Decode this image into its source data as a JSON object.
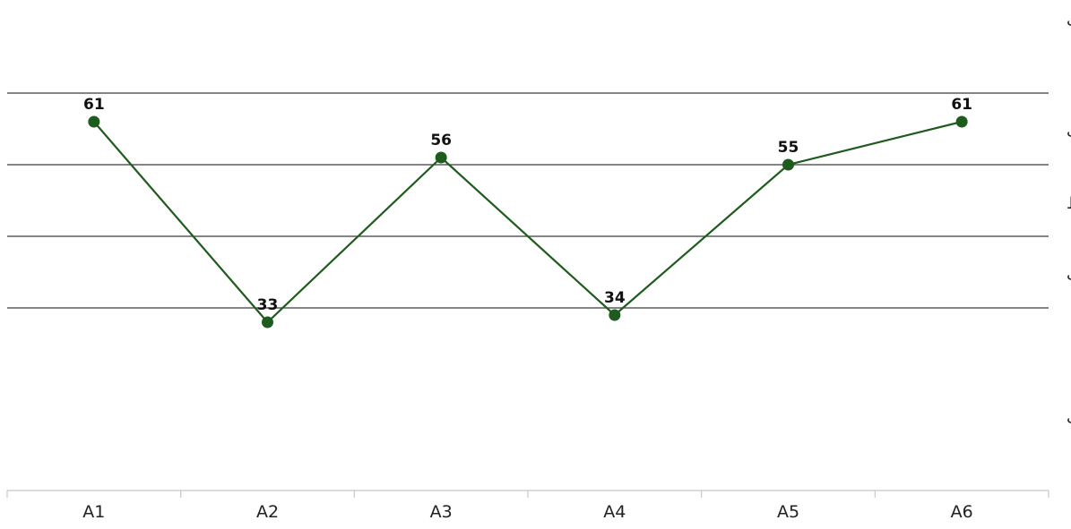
{
  "chart_data": {
    "type": "line",
    "title": "",
    "xlabel": "",
    "ylabel": "",
    "categories": [
      "A1",
      "A2",
      "A3",
      "A4",
      "A5",
      "A6"
    ],
    "series": [
      {
        "values": [
          61,
          33,
          56,
          34,
          55,
          61
        ],
        "color": "#1e5c1e"
      }
    ],
    "ylim": [
      10,
      75
    ],
    "reference_lines": [
      65,
      55,
      45,
      35
    ],
    "band_labels": [
      {
        "text": "خیلی مطلوب",
        "value": 75
      },
      {
        "text": "مطلوب",
        "value": 59.5
      },
      {
        "text": "متوسط",
        "value": 49.5
      },
      {
        "text": "نا مطلوب",
        "value": 39.5
      },
      {
        "text": "خیلی نامطلوب",
        "value": 19.5
      }
    ],
    "show_data_labels": true,
    "grid": false,
    "legend": "none"
  }
}
